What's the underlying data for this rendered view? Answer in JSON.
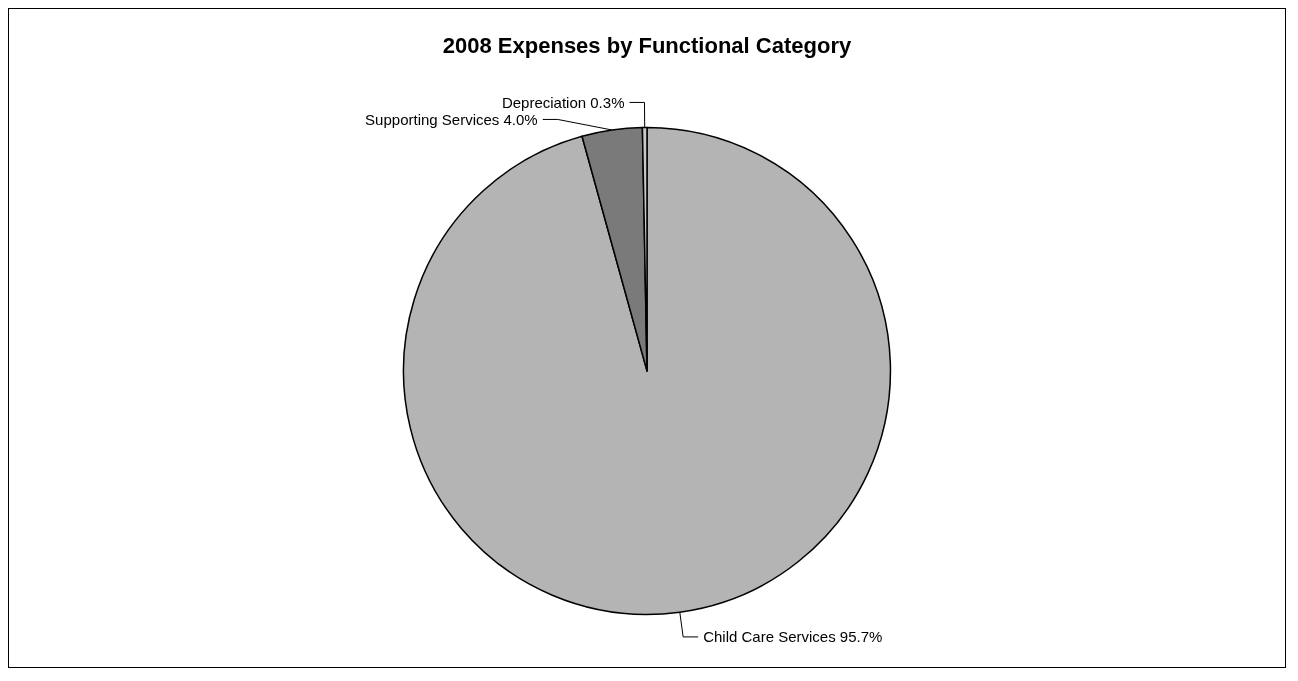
{
  "chart_data": {
    "type": "pie",
    "title": "2008 Expenses by Functional Category",
    "categories": [
      "Child Care Services",
      "Supporting Services",
      "Depreciation"
    ],
    "values": [
      95.7,
      4.0,
      0.3
    ],
    "value_labels": [
      "95.7%",
      "4.0%",
      "0.3%"
    ],
    "colors": [
      "#b4b4b4",
      "#7a7a7a",
      "#c8c8c8"
    ],
    "legend": false
  }
}
